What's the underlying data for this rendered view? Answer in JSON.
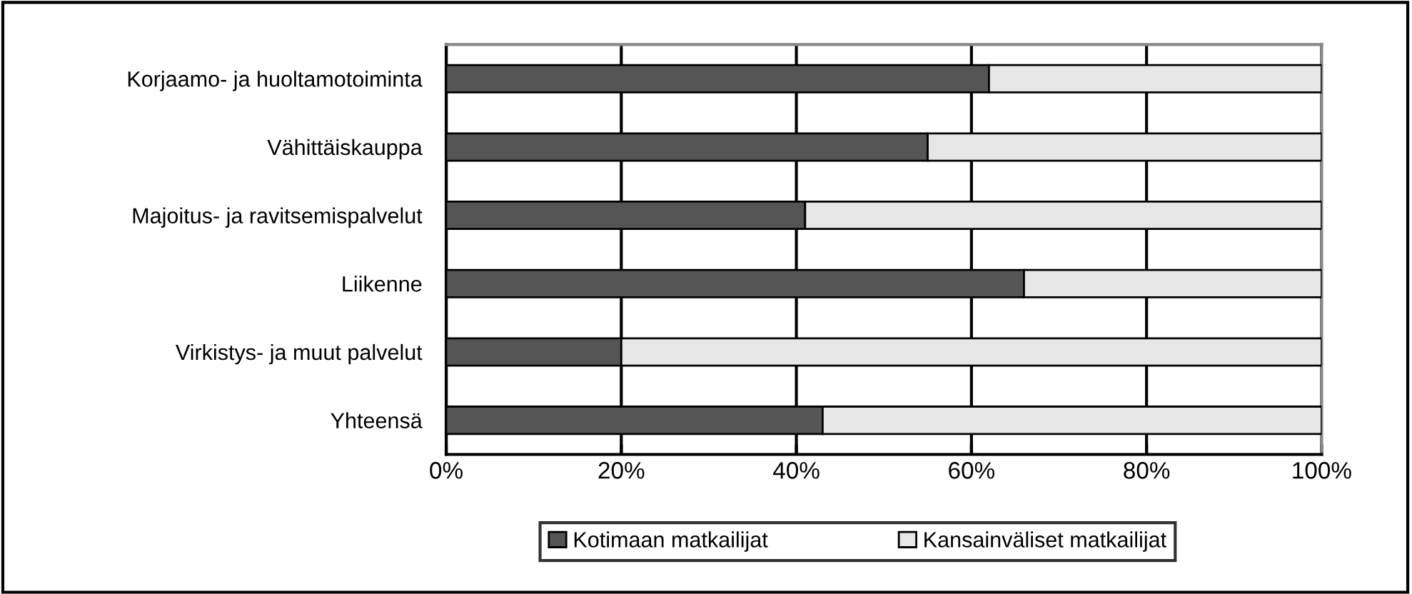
{
  "chart_data": {
    "type": "bar",
    "orientation": "horizontal",
    "stacked": true,
    "categories": [
      "Korjaamo- ja huoltamotoiminta",
      "Vähittäiskauppa",
      "Majoitus- ja ravitsemispalvelut",
      "Liikenne",
      "Virkistys- ja muut palvelut",
      "Yhteensä"
    ],
    "series": [
      {
        "name": "Kotimaan matkailijat",
        "color": "#555555",
        "values": [
          62,
          55,
          41,
          66,
          20,
          43
        ]
      },
      {
        "name": "Kansainväliset matkailijat",
        "color": "#e6e6e6",
        "values": [
          38,
          45,
          59,
          34,
          80,
          57
        ]
      }
    ],
    "xlim": [
      0,
      100
    ],
    "xticks": [
      {
        "value": 0,
        "label": "0%"
      },
      {
        "value": 20,
        "label": "20%"
      },
      {
        "value": 40,
        "label": "40%"
      },
      {
        "value": 60,
        "label": "60%"
      },
      {
        "value": 80,
        "label": "80%"
      },
      {
        "value": 100,
        "label": "100%"
      }
    ],
    "grid": "x",
    "legend": "bottom"
  }
}
